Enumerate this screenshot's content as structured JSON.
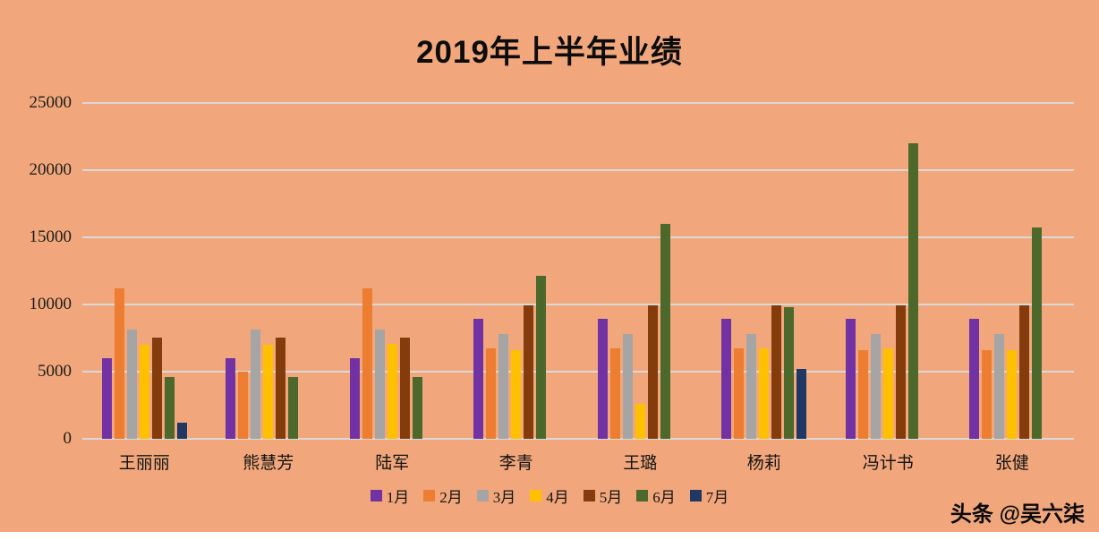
{
  "title": "2019年上半年业绩",
  "watermark": "头条 @吴六柒",
  "colors": {
    "background": "#F1A77B",
    "gridline": "#D9D9D9",
    "text": "#141414"
  },
  "chart_data": {
    "type": "bar",
    "title": "2019年上半年业绩",
    "xlabel": "",
    "ylabel": "",
    "ylim": [
      0,
      25000
    ],
    "yticks": [
      0,
      5000,
      10000,
      15000,
      20000,
      25000
    ],
    "grid": true,
    "legend_position": "bottom",
    "categories": [
      "王丽丽",
      "熊慧芳",
      "陆军",
      "李青",
      "王璐",
      "杨莉",
      "冯计书",
      "张健"
    ],
    "series": [
      {
        "name": "1月",
        "color": "#7232A3",
        "values": [
          6000,
          6000,
          6000,
          8900,
          8900,
          8900,
          8900,
          8900
        ]
      },
      {
        "name": "2月",
        "color": "#ED7D31",
        "values": [
          11200,
          5000,
          11200,
          6700,
          6700,
          6700,
          6600,
          6600
        ]
      },
      {
        "name": "3月",
        "color": "#A5A5A5",
        "values": [
          8100,
          8100,
          8100,
          7800,
          7800,
          7800,
          7800,
          7800
        ]
      },
      {
        "name": "4月",
        "color": "#FFC000",
        "values": [
          7000,
          7000,
          7100,
          6600,
          2600,
          6700,
          6700,
          6600
        ]
      },
      {
        "name": "5月",
        "color": "#843C0C",
        "values": [
          7500,
          7500,
          7500,
          9900,
          9900,
          9900,
          9900,
          9900
        ]
      },
      {
        "name": "6月",
        "color": "#4C682B",
        "values": [
          4600,
          4600,
          4600,
          12100,
          16000,
          9800,
          22000,
          15700
        ]
      },
      {
        "name": "7月",
        "color": "#1F3864",
        "values": [
          1200,
          0,
          0,
          0,
          0,
          5200,
          0,
          0
        ]
      }
    ]
  }
}
